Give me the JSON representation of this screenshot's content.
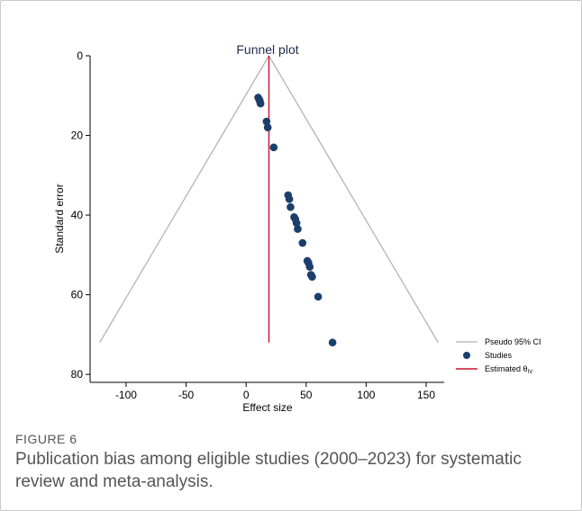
{
  "chart_data": {
    "type": "scatter",
    "title": "Funnel plot",
    "xlabel": "Effect size",
    "ylabel": "Standard error",
    "xlim": [
      -130,
      165
    ],
    "ylim": [
      82,
      0
    ],
    "y_reversed": true,
    "x_ticks": [
      -100,
      -50,
      0,
      50,
      100,
      150
    ],
    "y_ticks": [
      0,
      20,
      40,
      60,
      80
    ],
    "grid": false,
    "legend_position": "right",
    "legend": {
      "ci_label": "Pseudo 95% CI",
      "studies_label": "Studies",
      "estimate_label": "Estimated θ",
      "estimate_sub": "IV"
    },
    "estimated_theta": 19,
    "ci_lines": [
      {
        "x": [
          19,
          -122
        ],
        "y": [
          0,
          72
        ]
      },
      {
        "x": [
          19,
          160
        ],
        "y": [
          0,
          72
        ]
      }
    ],
    "studies": {
      "x": [
        10,
        11,
        11.5,
        12,
        17,
        18,
        23,
        35,
        36,
        37,
        40,
        41,
        42,
        43,
        47,
        51,
        52,
        53,
        54,
        55,
        60,
        72
      ],
      "y": [
        10.5,
        11,
        11.5,
        12,
        16.5,
        18,
        23,
        35,
        36,
        38,
        40.5,
        41,
        42,
        43.5,
        47,
        51.5,
        52,
        53,
        55,
        55.5,
        60.5,
        72
      ]
    },
    "colors": {
      "studies": "#1b3f6b",
      "estimate": "#c8102e",
      "ci": "#b4b4b4",
      "axis": "#000000",
      "title": "#1e2d4b"
    }
  },
  "figure": {
    "label": "FIGURE 6",
    "caption": "Publication bias among eligible studies (2000–2023) for systematic review and meta-analysis."
  }
}
